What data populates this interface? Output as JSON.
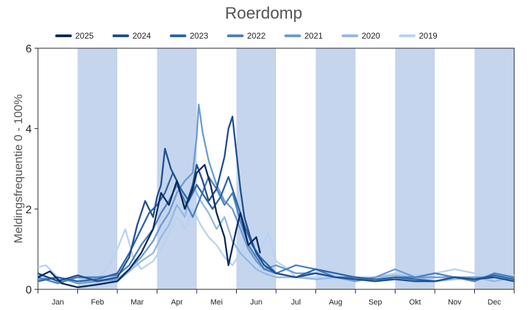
{
  "chart_data": {
    "type": "line",
    "title": "Roerdomp",
    "xlabel": "",
    "ylabel": "Meldingsfrequentie 0 - 100%",
    "ylim": [
      0,
      6
    ],
    "yticks": [
      "0",
      "2",
      "4",
      "6"
    ],
    "months": [
      "Jan",
      "Feb",
      "Mar",
      "Apr",
      "Mei",
      "Jun",
      "Jul",
      "Aug",
      "Sep",
      "Okt",
      "Nov",
      "Dec"
    ],
    "shaded_months": [
      "Feb",
      "Apr",
      "Jun",
      "Aug",
      "Okt",
      "Dec"
    ],
    "shade_color": "#c5d5ee",
    "legend_position": "top",
    "series": [
      {
        "name": "2025",
        "color": "#0b2a5c",
        "points": [
          [
            0.0,
            0.3
          ],
          [
            0.3,
            0.45
          ],
          [
            0.6,
            0.15
          ],
          [
            1.0,
            0.05
          ],
          [
            1.5,
            0.12
          ],
          [
            2.0,
            0.2
          ],
          [
            2.3,
            0.5
          ],
          [
            2.6,
            0.9
          ],
          [
            2.9,
            1.5
          ],
          [
            3.1,
            2.4
          ],
          [
            3.3,
            2.1
          ],
          [
            3.5,
            2.7
          ],
          [
            3.7,
            2.0
          ],
          [
            3.9,
            2.5
          ],
          [
            4.0,
            2.9
          ],
          [
            4.2,
            3.1
          ],
          [
            4.35,
            2.6
          ],
          [
            4.5,
            1.9
          ],
          [
            4.7,
            1.3
          ],
          [
            4.8,
            0.6
          ],
          [
            5.0,
            1.5
          ],
          [
            5.1,
            1.9
          ],
          [
            5.3,
            1.1
          ],
          [
            5.5,
            1.3
          ],
          [
            5.6,
            0.9
          ]
        ]
      },
      {
        "name": "2024",
        "color": "#1f4e8f",
        "points": [
          [
            0.0,
            0.4
          ],
          [
            0.5,
            0.2
          ],
          [
            1.0,
            0.35
          ],
          [
            1.5,
            0.2
          ],
          [
            2.0,
            0.3
          ],
          [
            2.3,
            0.8
          ],
          [
            2.5,
            1.6
          ],
          [
            2.7,
            2.2
          ],
          [
            2.9,
            1.8
          ],
          [
            3.0,
            2.3
          ],
          [
            3.1,
            2.6
          ],
          [
            3.2,
            3.5
          ],
          [
            3.35,
            3.0
          ],
          [
            3.5,
            2.7
          ],
          [
            3.7,
            2.0
          ],
          [
            3.9,
            2.6
          ],
          [
            4.0,
            3.1
          ],
          [
            4.15,
            2.7
          ],
          [
            4.3,
            2.2
          ],
          [
            4.5,
            2.5
          ],
          [
            4.7,
            3.3
          ],
          [
            4.8,
            4.0
          ],
          [
            4.9,
            4.3
          ],
          [
            5.0,
            3.4
          ],
          [
            5.1,
            2.5
          ],
          [
            5.2,
            1.8
          ],
          [
            5.35,
            1.3
          ],
          [
            5.5,
            0.9
          ],
          [
            5.7,
            0.6
          ],
          [
            6.0,
            0.4
          ],
          [
            6.5,
            0.3
          ],
          [
            7.0,
            0.4
          ],
          [
            7.5,
            0.3
          ],
          [
            8.0,
            0.25
          ],
          [
            8.5,
            0.2
          ],
          [
            9.0,
            0.25
          ],
          [
            9.5,
            0.2
          ],
          [
            10.0,
            0.2
          ],
          [
            10.5,
            0.3
          ],
          [
            11.0,
            0.25
          ],
          [
            11.5,
            0.3
          ],
          [
            12.0,
            0.2
          ]
        ]
      },
      {
        "name": "2023",
        "color": "#2e65a8",
        "points": [
          [
            0.0,
            0.2
          ],
          [
            0.5,
            0.3
          ],
          [
            1.0,
            0.2
          ],
          [
            1.5,
            0.25
          ],
          [
            2.0,
            0.4
          ],
          [
            2.3,
            0.9
          ],
          [
            2.5,
            1.3
          ],
          [
            2.8,
            1.9
          ],
          [
            3.0,
            2.1
          ],
          [
            3.2,
            2.4
          ],
          [
            3.4,
            2.9
          ],
          [
            3.6,
            2.5
          ],
          [
            3.8,
            2.2
          ],
          [
            4.0,
            2.6
          ],
          [
            4.2,
            2.3
          ],
          [
            4.4,
            2.0
          ],
          [
            4.6,
            2.3
          ],
          [
            4.8,
            2.8
          ],
          [
            5.0,
            2.2
          ],
          [
            5.2,
            1.6
          ],
          [
            5.4,
            1.1
          ],
          [
            5.6,
            0.8
          ],
          [
            5.8,
            0.6
          ],
          [
            6.0,
            0.4
          ],
          [
            6.5,
            0.3
          ],
          [
            7.0,
            0.5
          ],
          [
            7.5,
            0.4
          ],
          [
            8.0,
            0.3
          ],
          [
            8.5,
            0.25
          ],
          [
            9.0,
            0.3
          ],
          [
            9.5,
            0.25
          ],
          [
            10.0,
            0.2
          ],
          [
            10.5,
            0.3
          ],
          [
            11.0,
            0.25
          ],
          [
            11.5,
            0.35
          ],
          [
            12.0,
            0.25
          ]
        ]
      },
      {
        "name": "2022",
        "color": "#4a7fbf",
        "points": [
          [
            0.0,
            0.3
          ],
          [
            0.5,
            0.15
          ],
          [
            1.0,
            0.3
          ],
          [
            1.5,
            0.3
          ],
          [
            2.0,
            0.35
          ],
          [
            2.3,
            0.6
          ],
          [
            2.6,
            1.1
          ],
          [
            2.9,
            1.5
          ],
          [
            3.1,
            1.9
          ],
          [
            3.3,
            2.2
          ],
          [
            3.5,
            2.6
          ],
          [
            3.7,
            2.2
          ],
          [
            3.9,
            1.8
          ],
          [
            4.1,
            2.3
          ],
          [
            4.3,
            2.8
          ],
          [
            4.5,
            2.5
          ],
          [
            4.7,
            2.1
          ],
          [
            4.9,
            2.4
          ],
          [
            5.1,
            1.7
          ],
          [
            5.3,
            1.1
          ],
          [
            5.5,
            0.8
          ],
          [
            5.7,
            0.5
          ],
          [
            6.0,
            0.4
          ],
          [
            6.5,
            0.6
          ],
          [
            7.0,
            0.5
          ],
          [
            7.5,
            0.3
          ],
          [
            8.0,
            0.3
          ],
          [
            8.5,
            0.2
          ],
          [
            9.0,
            0.3
          ],
          [
            9.5,
            0.3
          ],
          [
            10.0,
            0.4
          ],
          [
            10.5,
            0.3
          ],
          [
            11.0,
            0.2
          ],
          [
            11.5,
            0.4
          ],
          [
            12.0,
            0.3
          ]
        ]
      },
      {
        "name": "2021",
        "color": "#6b9bd2",
        "points": [
          [
            0.0,
            0.25
          ],
          [
            0.5,
            0.3
          ],
          [
            1.0,
            0.15
          ],
          [
            1.5,
            0.2
          ],
          [
            2.0,
            0.25
          ],
          [
            2.3,
            0.5
          ],
          [
            2.6,
            0.8
          ],
          [
            2.9,
            1.2
          ],
          [
            3.1,
            1.6
          ],
          [
            3.3,
            1.9
          ],
          [
            3.5,
            2.4
          ],
          [
            3.7,
            2.7
          ],
          [
            3.9,
            2.9
          ],
          [
            4.0,
            3.8
          ],
          [
            4.05,
            4.6
          ],
          [
            4.15,
            3.9
          ],
          [
            4.3,
            3.2
          ],
          [
            4.5,
            2.6
          ],
          [
            4.7,
            2.2
          ],
          [
            4.9,
            2.0
          ],
          [
            5.1,
            1.5
          ],
          [
            5.3,
            1.0
          ],
          [
            5.5,
            0.7
          ],
          [
            5.7,
            0.5
          ],
          [
            6.0,
            0.6
          ],
          [
            6.5,
            0.4
          ],
          [
            7.0,
            0.4
          ],
          [
            7.5,
            0.3
          ],
          [
            8.0,
            0.2
          ],
          [
            8.5,
            0.3
          ],
          [
            9.0,
            0.5
          ],
          [
            9.5,
            0.3
          ],
          [
            10.0,
            0.3
          ],
          [
            10.5,
            0.3
          ],
          [
            11.0,
            0.3
          ],
          [
            11.5,
            0.3
          ],
          [
            12.0,
            0.2
          ]
        ]
      },
      {
        "name": "2020",
        "color": "#93b8e3",
        "points": [
          [
            0.0,
            0.35
          ],
          [
            0.5,
            0.25
          ],
          [
            1.0,
            0.3
          ],
          [
            1.5,
            0.25
          ],
          [
            2.0,
            0.2
          ],
          [
            2.3,
            0.45
          ],
          [
            2.6,
            0.7
          ],
          [
            2.9,
            0.9
          ],
          [
            3.1,
            1.3
          ],
          [
            3.3,
            1.6
          ],
          [
            3.5,
            2.1
          ],
          [
            3.7,
            1.8
          ],
          [
            3.9,
            2.6
          ],
          [
            4.1,
            2.2
          ],
          [
            4.3,
            1.9
          ],
          [
            4.5,
            1.5
          ],
          [
            4.7,
            1.8
          ],
          [
            4.9,
            1.2
          ],
          [
            5.1,
            0.9
          ],
          [
            5.3,
            0.7
          ],
          [
            5.5,
            0.5
          ],
          [
            5.7,
            0.4
          ],
          [
            6.0,
            0.3
          ],
          [
            6.5,
            0.3
          ],
          [
            7.0,
            0.25
          ],
          [
            7.5,
            0.3
          ],
          [
            8.0,
            0.25
          ],
          [
            8.5,
            0.3
          ],
          [
            9.0,
            0.35
          ],
          [
            9.5,
            0.3
          ],
          [
            10.0,
            0.2
          ],
          [
            10.5,
            0.25
          ],
          [
            11.0,
            0.3
          ],
          [
            11.5,
            0.2
          ],
          [
            12.0,
            0.3
          ]
        ]
      },
      {
        "name": "2019",
        "color": "#b8d3f2",
        "points": [
          [
            0.0,
            0.55
          ],
          [
            0.2,
            0.6
          ],
          [
            0.5,
            0.3
          ],
          [
            1.0,
            0.2
          ],
          [
            1.5,
            0.25
          ],
          [
            1.8,
            0.6
          ],
          [
            2.0,
            1.0
          ],
          [
            2.2,
            1.5
          ],
          [
            2.4,
            0.8
          ],
          [
            2.6,
            0.5
          ],
          [
            2.9,
            0.7
          ],
          [
            3.1,
            1.0
          ],
          [
            3.3,
            1.4
          ],
          [
            3.5,
            1.8
          ],
          [
            3.7,
            1.5
          ],
          [
            3.9,
            2.0
          ],
          [
            4.1,
            1.6
          ],
          [
            4.3,
            1.3
          ],
          [
            4.5,
            1.1
          ],
          [
            4.7,
            0.8
          ],
          [
            4.9,
            0.6
          ],
          [
            5.1,
            0.9
          ],
          [
            5.3,
            1.2
          ],
          [
            5.5,
            0.8
          ],
          [
            5.8,
            1.4
          ],
          [
            6.0,
            0.7
          ],
          [
            6.3,
            0.5
          ],
          [
            6.5,
            0.3
          ],
          [
            7.0,
            0.3
          ],
          [
            7.5,
            0.25
          ],
          [
            8.0,
            0.3
          ],
          [
            8.5,
            0.3
          ],
          [
            9.0,
            0.4
          ],
          [
            9.5,
            0.35
          ],
          [
            10.0,
            0.4
          ],
          [
            10.5,
            0.5
          ],
          [
            11.0,
            0.4
          ],
          [
            11.5,
            0.3
          ],
          [
            12.0,
            0.35
          ]
        ]
      }
    ]
  }
}
